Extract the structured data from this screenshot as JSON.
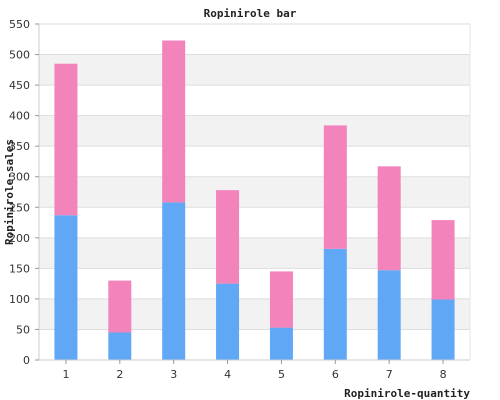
{
  "chart_data": {
    "type": "bar",
    "stacked": true,
    "title": "Ropinirole bar",
    "xlabel": "Ropinirole-quantity",
    "ylabel": "Ropinirole-sales",
    "categories": [
      "1",
      "2",
      "3",
      "4",
      "5",
      "6",
      "7",
      "8"
    ],
    "series": [
      {
        "color": "#60a8f6",
        "values": [
          237,
          45,
          258,
          125,
          53,
          182,
          147,
          99
        ]
      },
      {
        "color": "#f283bb",
        "values": [
          248,
          85,
          265,
          153,
          92,
          202,
          170,
          130
        ]
      }
    ],
    "ylim": [
      0,
      550
    ],
    "yticks": [
      0,
      50,
      100,
      150,
      200,
      250,
      300,
      350,
      400,
      450,
      500,
      550
    ],
    "grid": true,
    "band_color": "#f2f2f2",
    "grid_color": "#dddddd",
    "legend": "none"
  }
}
